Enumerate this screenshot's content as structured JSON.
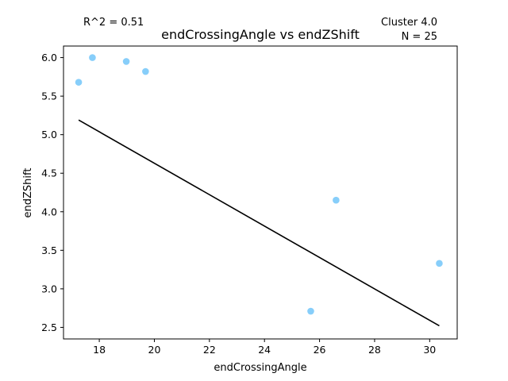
{
  "chart_data": {
    "type": "scatter",
    "title": "endCrossingAngle vs endZShift",
    "xlabel": "endCrossingAngle",
    "ylabel": "endZShift",
    "xlim": [
      16.7,
      31.0
    ],
    "ylim": [
      2.35,
      6.15
    ],
    "x_ticks": [
      18,
      20,
      22,
      24,
      26,
      28,
      30
    ],
    "y_ticks": [
      2.5,
      3.0,
      3.5,
      4.0,
      4.5,
      5.0,
      5.5,
      6.0
    ],
    "x_tick_labels": [
      "18",
      "20",
      "22",
      "24",
      "26",
      "28",
      "30"
    ],
    "y_tick_labels": [
      "2.5",
      "3.0",
      "3.5",
      "4.0",
      "4.5",
      "5.0",
      "5.5",
      "6.0"
    ],
    "points": [
      {
        "x": 17.25,
        "y": 5.68
      },
      {
        "x": 17.75,
        "y": 6.0
      },
      {
        "x": 18.98,
        "y": 5.95
      },
      {
        "x": 19.68,
        "y": 5.82
      },
      {
        "x": 25.68,
        "y": 2.71
      },
      {
        "x": 26.6,
        "y": 4.15
      },
      {
        "x": 30.35,
        "y": 3.33
      }
    ],
    "fit_line": [
      {
        "x": 17.25,
        "y": 5.19
      },
      {
        "x": 30.35,
        "y": 2.52
      }
    ],
    "point_color": "#87cefa",
    "line_color": "#000000",
    "grid": false,
    "annotations": {
      "r_squared": "R^2 = 0.51",
      "cluster": "Cluster 4.0",
      "n": "N = 25"
    }
  }
}
